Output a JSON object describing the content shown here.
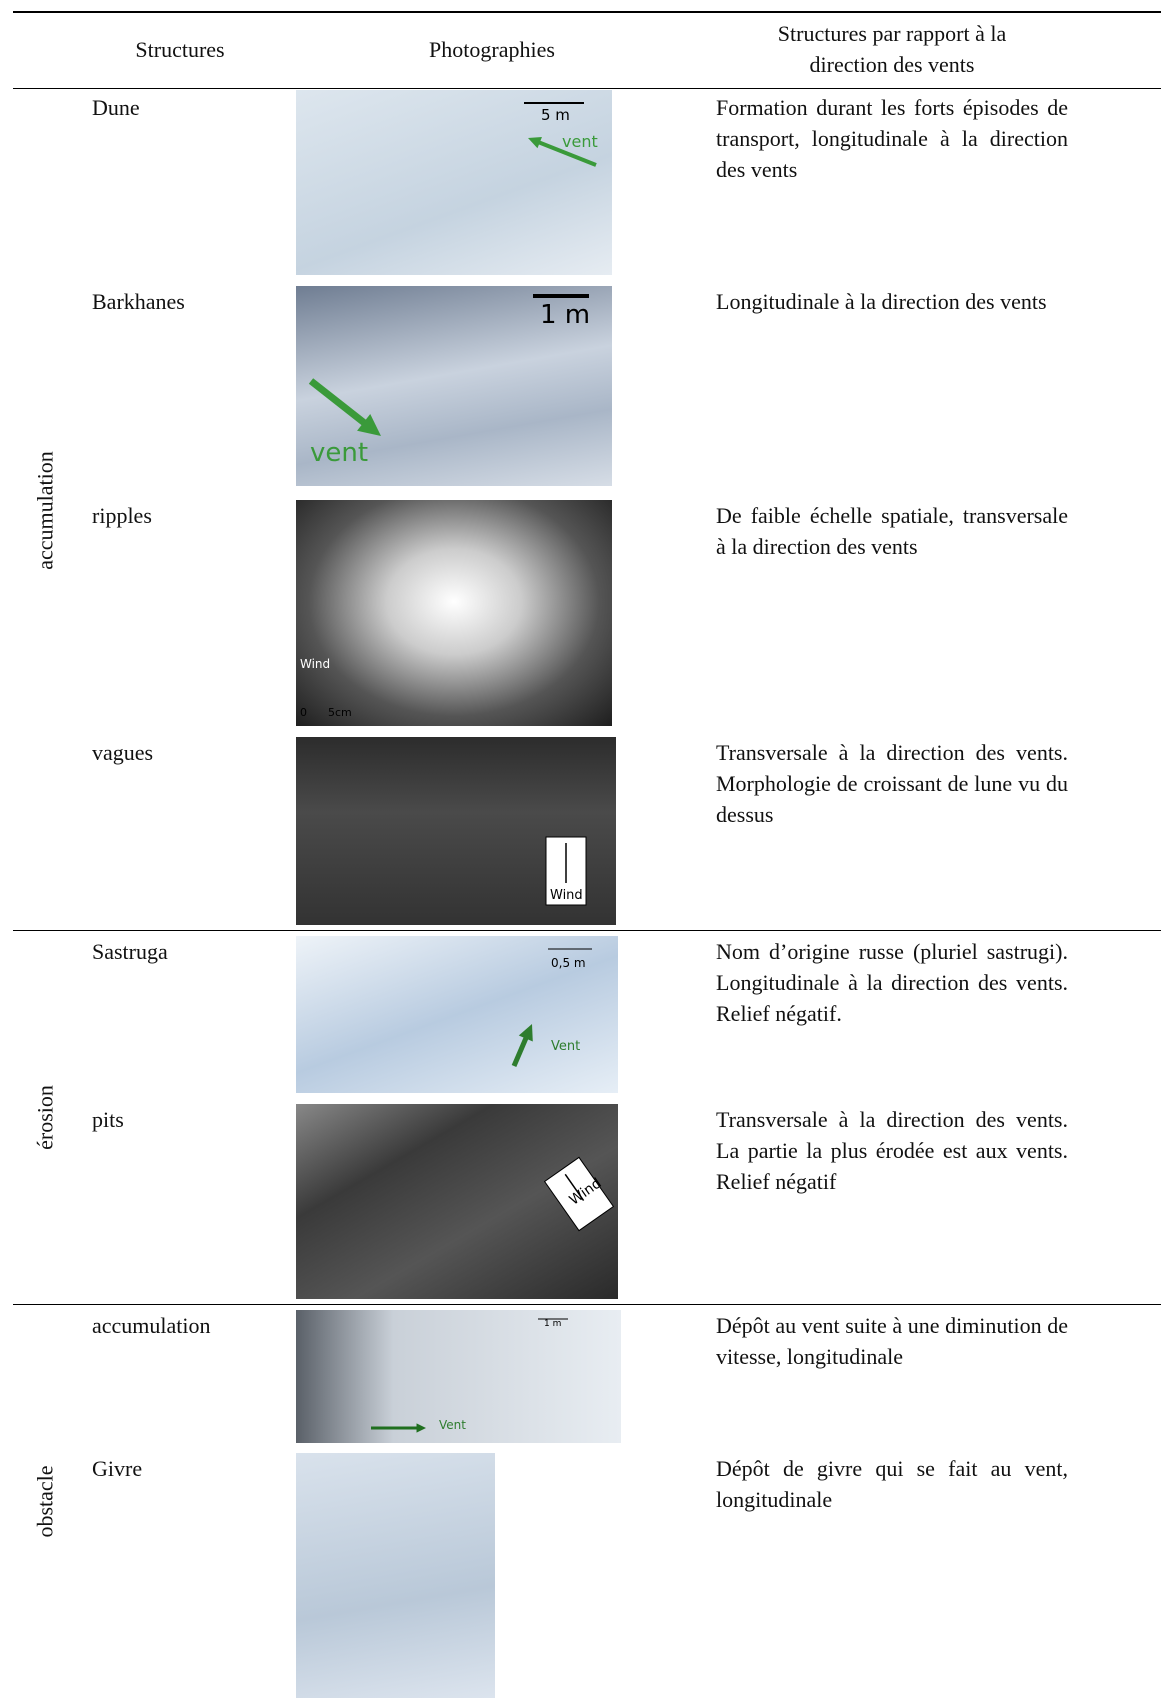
{
  "header": {
    "columns": [
      "Structures",
      "Photographies",
      "Structures par rapport à la direction des vents"
    ]
  },
  "groups": [
    {
      "label": "accumulation",
      "rows": [
        {
          "structure": "Dune",
          "photo_labels": [
            "5 m",
            "vent"
          ],
          "description": "Formation durant les forts épisodes de transport, longitudinale à la direction des vents"
        },
        {
          "structure": "Barkhanes",
          "photo_labels": [
            "1 m",
            "vent"
          ],
          "description": "Longitudinale à la direction des vents"
        },
        {
          "structure": "ripples",
          "photo_labels": [
            "Wind",
            "0      5cm"
          ],
          "description": "De faible échelle spatiale, transversale à la direction des vents"
        },
        {
          "structure": "vagues",
          "photo_labels": [
            "Wind"
          ],
          "description": "Transversale à la direction des vents. Morphologie de croissant de lune vu du dessus"
        }
      ]
    },
    {
      "label": "érosion",
      "rows": [
        {
          "structure": "Sastruga",
          "photo_labels": [
            "0,5 m",
            "Vent"
          ],
          "description": "Nom d’origine russe (pluriel sastrugi). Longitudinale à la direction des vents. Relief négatif."
        },
        {
          "structure": "pits",
          "photo_labels": [
            "Wind"
          ],
          "description": "Transversale à la direction des vents. La partie la plus érodée est aux vents. Relief négatif"
        }
      ]
    },
    {
      "label": "obstacle",
      "rows": [
        {
          "structure": "accumulation",
          "photo_labels": [
            "1 m",
            "Vent"
          ],
          "description": "Dépôt au vent suite à une diminution de vitesse, longitudinale"
        },
        {
          "structure": "Givre",
          "photo_labels": [],
          "description": "Dépôt de givre qui se fait au vent, longitudinale"
        }
      ]
    }
  ]
}
